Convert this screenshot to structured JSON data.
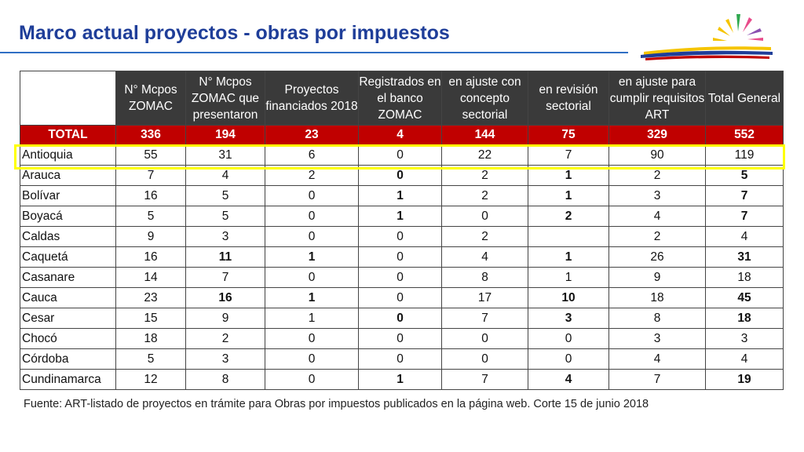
{
  "title": "Marco actual proyectos - obras por impuestos",
  "colors": {
    "title": "#1f3e99",
    "header_bg": "#3a3a3a",
    "total_bg": "#c00000",
    "highlight": "#ffff00"
  },
  "table": {
    "headers": [
      "",
      "N° Mcpos ZOMAC",
      "N° Mcpos ZOMAC que presentaron",
      "Proyectos financiados 2018",
      "Registrados en el banco ZOMAC",
      "en ajuste con concepto sectorial",
      "en revisión sectorial",
      "en ajuste para cumplir requisitos ART",
      "Total General"
    ],
    "total": [
      "TOTAL",
      "336",
      "194",
      "23",
      "4",
      "144",
      "75",
      "329",
      "552"
    ],
    "rows": [
      [
        "Antioquia",
        "55",
        "31",
        "6",
        "0",
        "22",
        "7",
        "90",
        "119"
      ],
      [
        "Arauca",
        "7",
        "4",
        "2",
        "0",
        "2",
        "1",
        "2",
        "5"
      ],
      [
        "Bolívar",
        "16",
        "5",
        "0",
        "1",
        "2",
        "1",
        "3",
        "7"
      ],
      [
        "Boyacá",
        "5",
        "5",
        "0",
        "1",
        "0",
        "2",
        "4",
        "7"
      ],
      [
        "Caldas",
        "9",
        "3",
        "0",
        "0",
        "2",
        "",
        "2",
        "4"
      ],
      [
        "Caquetá",
        "16",
        "11",
        "1",
        "0",
        "4",
        "1",
        "26",
        "31"
      ],
      [
        "Casanare",
        "14",
        "7",
        "0",
        "0",
        "8",
        "1",
        "9",
        "18"
      ],
      [
        "Cauca",
        "23",
        "16",
        "1",
        "0",
        "17",
        "10",
        "18",
        "45"
      ],
      [
        "Cesar",
        "15",
        "9",
        "1",
        "0",
        "7",
        "3",
        "8",
        "18"
      ],
      [
        "Chocó",
        "18",
        "2",
        "0",
        "0",
        "0",
        "0",
        "3",
        "3"
      ],
      [
        "Córdoba",
        "5",
        "3",
        "0",
        "0",
        "0",
        "0",
        "4",
        "4"
      ],
      [
        "Cundinamarca",
        "12",
        "8",
        "0",
        "1",
        "7",
        "4",
        "7",
        "19"
      ]
    ]
  },
  "source": "Fuente: ART-listado de proyectos en trámite para Obras por impuestos publicados en la página web. Corte 15 de junio 2018"
}
